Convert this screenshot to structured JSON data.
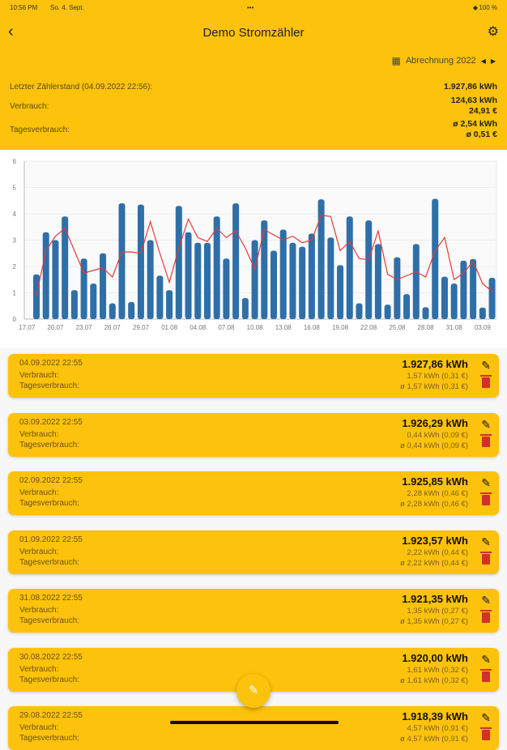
{
  "status": {
    "time": "10:56 PM",
    "date": "So. 4. Sept.",
    "dots": "•••",
    "wifi": "wifi-icon",
    "battery": "100 %"
  },
  "header": {
    "title": "Demo Stromzähler",
    "period": "Abrechnung 2022"
  },
  "summary": {
    "last_label": "Letzter Zählerstand (04.09.2022 22:56):",
    "last_value": "1.927,86 kWh",
    "cons_label": "Verbrauch:",
    "cons_kwh": "124,63 kWh",
    "cons_eur": "24,91 €",
    "daily_label": "Tagesverbrauch:",
    "daily_kwh": "ø 2,54 kWh",
    "daily_eur": "ø 0,51 €"
  },
  "colors": {
    "accent": "#fdc20b",
    "bar": "#2f6fa8",
    "line": "#e53935",
    "delete": "#d32f2f"
  },
  "chart_data": {
    "type": "bar",
    "title": "",
    "xlabel": "",
    "ylabel": "",
    "ylim": [
      0,
      6
    ],
    "yticks": [
      "0",
      "1",
      "2",
      "3",
      "4",
      "5",
      "6"
    ],
    "grid": true,
    "xticks": [
      "17.07",
      "20.07",
      "23.07",
      "26.07",
      "29.07",
      "01.08",
      "04.08",
      "07.08",
      "10.08",
      "13.08",
      "16.08",
      "19.08",
      "22.08",
      "25.08",
      "28.08",
      "31.08",
      "03.09"
    ],
    "categories": [
      "18.07",
      "19.07",
      "20.07",
      "21.07",
      "22.07",
      "23.07",
      "24.07",
      "25.07",
      "26.07",
      "27.07",
      "28.07",
      "29.07",
      "30.07",
      "31.07",
      "01.08",
      "02.08",
      "03.08",
      "04.08",
      "05.08",
      "06.08",
      "07.08",
      "08.08",
      "09.08",
      "10.08",
      "11.08",
      "12.08",
      "13.08",
      "14.08",
      "15.08",
      "16.08",
      "17.08",
      "18.08",
      "19.08",
      "20.08",
      "21.08",
      "22.08",
      "23.08",
      "24.08",
      "25.08",
      "26.08",
      "27.08",
      "28.08",
      "29.08",
      "30.08",
      "31.08",
      "01.09",
      "02.09",
      "03.09",
      "04.09"
    ],
    "series": [
      {
        "name": "Tagesverbrauch",
        "type": "bar",
        "values": [
          1.7,
          3.3,
          3.0,
          3.9,
          1.1,
          2.3,
          1.35,
          2.5,
          0.6,
          4.4,
          0.65,
          4.35,
          3.0,
          1.65,
          1.1,
          4.3,
          3.3,
          2.9,
          2.9,
          3.9,
          2.3,
          4.4,
          0.8,
          3.0,
          3.75,
          2.6,
          3.4,
          2.9,
          2.75,
          3.25,
          4.55,
          3.1,
          2.05,
          3.9,
          0.6,
          3.75,
          2.85,
          0.55,
          2.35,
          0.95,
          2.85,
          0.45,
          4.57,
          1.61,
          1.35,
          2.22,
          2.28,
          0.44,
          1.57
        ]
      },
      {
        "name": "Durchschnitt",
        "type": "line",
        "values": [
          0.9,
          2.6,
          3.15,
          3.45,
          2.6,
          1.75,
          1.85,
          1.95,
          1.6,
          2.55,
          2.55,
          2.5,
          3.7,
          2.5,
          1.4,
          2.7,
          3.8,
          3.1,
          2.95,
          3.45,
          3.1,
          3.35,
          2.7,
          1.9,
          3.4,
          3.2,
          3.0,
          3.15,
          2.9,
          3.0,
          3.95,
          3.9,
          2.6,
          2.95,
          2.3,
          2.25,
          3.35,
          1.7,
          1.5,
          1.65,
          1.8,
          1.6,
          2.6,
          3.1,
          1.5,
          1.75,
          2.2,
          1.35,
          1.05
        ]
      }
    ]
  },
  "labels": {
    "verbrauch": "Verbrauch:",
    "tages": "Tagesverbrauch:"
  },
  "entries": [
    {
      "date": "04.09.2022 22:55",
      "kwh": "1.927,86 kWh",
      "cons": "1,57 kWh (0,31 €)",
      "daily": "ø 1,57 kWh (0,31 €)"
    },
    {
      "date": "03.09.2022 22:55",
      "kwh": "1.926,29 kWh",
      "cons": "0,44 kWh (0,09 €)",
      "daily": "ø 0,44 kWh (0,09 €)"
    },
    {
      "date": "02.09.2022 22:55",
      "kwh": "1.925,85 kWh",
      "cons": "2,28 kWh (0,46 €)",
      "daily": "ø 2,28 kWh (0,46 €)"
    },
    {
      "date": "01.09.2022 22:55",
      "kwh": "1.923,57 kWh",
      "cons": "2,22 kWh (0,44 €)",
      "daily": "ø 2,22 kWh (0,44 €)"
    },
    {
      "date": "31.08.2022 22:55",
      "kwh": "1.921,35 kWh",
      "cons": "1,35 kWh (0,27 €)",
      "daily": "ø 1,35 kWh (0,27 €)"
    },
    {
      "date": "30.08.2022 22:55",
      "kwh": "1.920,00 kWh",
      "cons": "1,61 kWh (0,32 €)",
      "daily": "ø 1,61 kWh (0,32 €)"
    },
    {
      "date": "29.08.2022 22:55",
      "kwh": "1.918,39 kWh",
      "cons": "4,57 kWh (0,91 €)",
      "daily": "ø 4,57 kWh (0,91 €)"
    }
  ]
}
